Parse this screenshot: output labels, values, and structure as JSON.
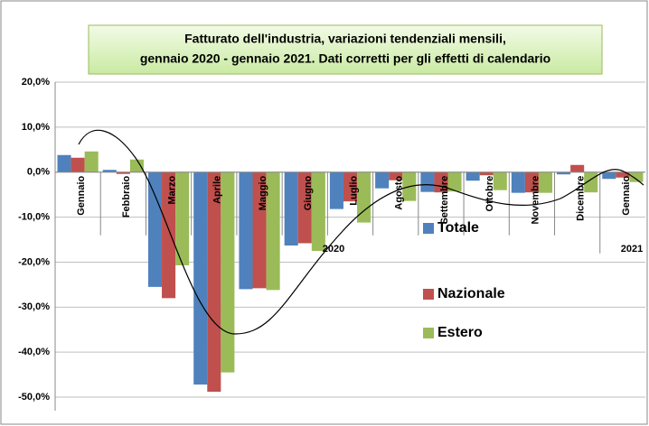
{
  "chart_data": {
    "type": "bar",
    "title": "Fatturato dell'industria, variazioni tendenziali mensili,",
    "subtitle": "gennaio 2020 - gennaio 2021. Dati corretti per gli effetti di calendario",
    "categories": [
      "Gennaio",
      "Febbraio",
      "Marzo",
      "Aprile",
      "Maggio",
      "Giugno",
      "Luglio",
      "Agosto",
      "Settembre",
      "Ottobre",
      "Novembre",
      "Dicembre",
      "Gennaio"
    ],
    "series": [
      {
        "name": "Totale",
        "color": "#4f81bd",
        "values": [
          3.8,
          0.5,
          -25.5,
          -47.2,
          -26,
          -16.3,
          -8.2,
          -3.6,
          -4.4,
          -1.9,
          -4.6,
          -0.5,
          -1.5
        ]
      },
      {
        "name": "Nazionale",
        "color": "#c0504d",
        "values": [
          3.2,
          -0.4,
          -28,
          -48.8,
          -25.8,
          -15.8,
          -6.5,
          -1.8,
          -4.5,
          -0.7,
          -4.5,
          1.6,
          -1.2
        ]
      },
      {
        "name": "Estero",
        "color": "#9bbb59",
        "values": [
          4.6,
          2.8,
          -20.7,
          -44.5,
          -26.2,
          -17.5,
          -11.2,
          -6.4,
          -4.3,
          -4.0,
          -4.6,
          -4.5,
          -2.2
        ]
      }
    ],
    "annotations": [
      "2020",
      "2021"
    ],
    "ylim": [
      -53,
      20
    ],
    "yticks": [
      {
        "value": -50,
        "label": "-50,0%"
      },
      {
        "value": -40,
        "label": "-40,0%"
      },
      {
        "value": -30,
        "label": "-30,0%"
      },
      {
        "value": -20,
        "label": "-20,0%"
      },
      {
        "value": -10,
        "label": "-10,0%"
      },
      {
        "value": 0,
        "label": "0,0%"
      },
      {
        "value": 10,
        "label": "10,0%"
      },
      {
        "value": 20,
        "label": "20,0%"
      }
    ],
    "grid": true
  }
}
